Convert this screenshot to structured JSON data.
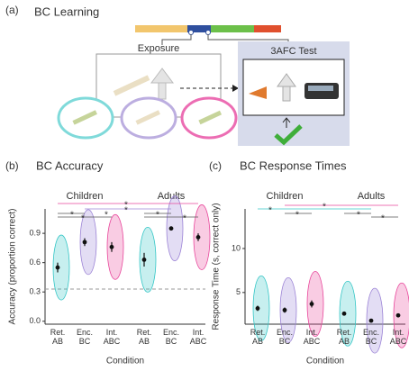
{
  "panel_a": {
    "label": "(a)",
    "title": "BC Learning",
    "exposure": "Exposure",
    "test": "3AFC Test"
  },
  "chart_data": [
    {
      "type": "dot",
      "panel": "(b)",
      "title": "BC Accuracy",
      "ylabel": "Accuracy (proportion correct)",
      "xlabel": "Condition",
      "groups": [
        "Children",
        "Adults"
      ],
      "categories": [
        "Ret.\nAB",
        "Enc.\nBC",
        "Int.\nABC",
        "Ret.\nAB",
        "Enc.\nBC",
        "Int.\nABC"
      ],
      "values": [
        0.55,
        0.81,
        0.76,
        0.63,
        0.95,
        0.86
      ],
      "errors": [
        0.05,
        0.04,
        0.05,
        0.07,
        0.02,
        0.04
      ],
      "colors": [
        "#35c6c6",
        "#9c84d6",
        "#e8489c",
        "#35c6c6",
        "#9c84d6",
        "#e8489c"
      ],
      "ylim": [
        -0.03,
        1.15
      ],
      "yticks": [
        {
          "value": 0,
          "label": "0.0"
        },
        0.3,
        0.6,
        0.9
      ],
      "reference_line": 0.33,
      "annotations": [
        "*",
        "*",
        "*",
        "*",
        "*",
        "*",
        "*"
      ]
    },
    {
      "type": "dot",
      "panel": "(c)",
      "title": "BC Response Times",
      "ylabel": "Response Time (s, correct only)",
      "xlabel": "Condition",
      "groups": [
        "Children",
        "Adults"
      ],
      "categories": [
        "Ret.\nAB",
        "Enc.\nBC",
        "Int.\nABC",
        "Ret.\nAB",
        "Enc.\nBC",
        "Int.\nABC"
      ],
      "values": [
        3.2,
        3.0,
        3.7,
        2.6,
        1.8,
        2.4
      ],
      "errors": [
        0.3,
        0.3,
        0.4,
        0.2,
        0.15,
        0.2
      ],
      "colors": [
        "#35c6c6",
        "#9c84d6",
        "#e8489c",
        "#35c6c6",
        "#9c84d6",
        "#e8489c"
      ],
      "ylim": [
        1.4,
        14.5
      ],
      "yticks": [
        5,
        10
      ],
      "annotations": [
        "*",
        "*",
        "*",
        "*",
        "*"
      ]
    }
  ]
}
